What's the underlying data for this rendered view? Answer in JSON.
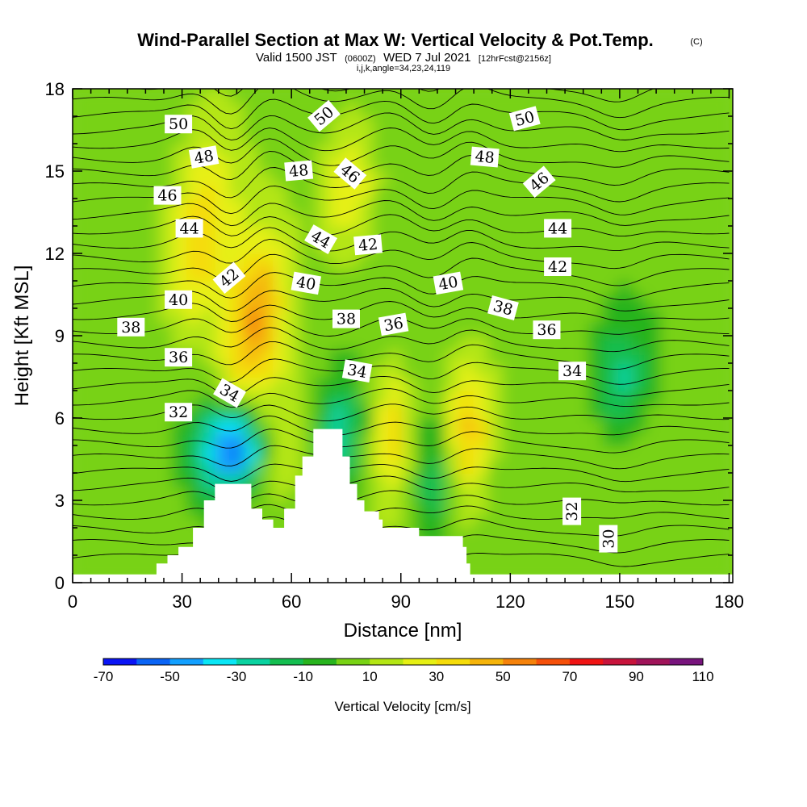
{
  "title": "Wind-Parallel Section at Max W: Vertical Velocity & Pot.Temp.",
  "title_mark": "(C)",
  "subtitle": {
    "valid": "Valid 1500 JST",
    "utc": "(0600Z)",
    "date": "WED 7 Jul 2021",
    "forecast": "[12hrFcst@2156z]"
  },
  "params": "i,j,k,angle=34,23,24,119",
  "chart_data": {
    "type": "heatmap",
    "xlabel": "Distance [nm]",
    "ylabel": "Height [Kft MSL]",
    "xlim": [
      0,
      181
    ],
    "ylim": [
      0,
      18
    ],
    "xticks": [
      0,
      30,
      60,
      90,
      120,
      150,
      180
    ],
    "yticks": [
      0,
      3,
      6,
      9,
      12,
      15,
      18
    ],
    "colorbar": {
      "title": "Vertical Velocity [cm/s]",
      "levels": [
        -70,
        -60,
        -50,
        -40,
        -30,
        -20,
        -10,
        0,
        10,
        20,
        30,
        40,
        50,
        60,
        70,
        80,
        90,
        100,
        110
      ],
      "tick_labels": [
        "-70",
        "-50",
        "-30",
        "-10",
        "10",
        "30",
        "50",
        "70",
        "90",
        "110"
      ],
      "colors": [
        "#0a14f5",
        "#0a64f5",
        "#12a0ff",
        "#0ae6f5",
        "#0ad2a0",
        "#14be50",
        "#28b41e",
        "#78d214",
        "#b4e614",
        "#e6f014",
        "#f5dc0a",
        "#f5b40a",
        "#f5820a",
        "#f5500a",
        "#f01414",
        "#c8143c",
        "#a0145a",
        "#78147d"
      ]
    },
    "wmax_cores": [
      {
        "x": 45,
        "y": 5.0,
        "w": -62
      },
      {
        "x": 35,
        "y": 12.5,
        "w": 34
      },
      {
        "x": 50,
        "y": 9.5,
        "w": 46
      },
      {
        "x": 76,
        "y": 14.5,
        "w": 28
      },
      {
        "x": 55,
        "y": 5.0,
        "w": 26
      },
      {
        "x": 88,
        "y": 5.5,
        "w": 32
      },
      {
        "x": 108,
        "y": 5.5,
        "w": 42
      },
      {
        "x": 74,
        "y": 5.5,
        "w": -32
      },
      {
        "x": 100,
        "y": 4.0,
        "w": -26
      },
      {
        "x": 150,
        "y": 7.5,
        "w": -28
      }
    ],
    "terrain": [
      [
        0,
        0.3
      ],
      [
        22,
        0.3
      ],
      [
        23,
        0.7
      ],
      [
        26,
        1.0
      ],
      [
        29,
        1.3
      ],
      [
        33,
        2.0
      ],
      [
        36,
        3.0
      ],
      [
        39,
        3.6
      ],
      [
        48,
        3.6
      ],
      [
        49,
        2.7
      ],
      [
        52,
        2.3
      ],
      [
        55,
        2.0
      ],
      [
        58,
        2.7
      ],
      [
        61,
        3.9
      ],
      [
        63,
        4.6
      ],
      [
        66,
        5.6
      ],
      [
        72,
        5.6
      ],
      [
        74,
        4.6
      ],
      [
        76,
        3.6
      ],
      [
        78,
        3.0
      ],
      [
        80,
        2.6
      ],
      [
        84,
        2.3
      ],
      [
        85,
        2.0
      ],
      [
        94,
        2.0
      ],
      [
        95,
        1.7
      ],
      [
        104,
        1.7
      ],
      [
        107,
        1.3
      ],
      [
        108,
        0.7
      ],
      [
        109,
        0.3
      ],
      [
        181,
        0.3
      ]
    ],
    "contour_labels": [
      {
        "text": "50",
        "x": 29,
        "y": 16.7,
        "rot": 0
      },
      {
        "text": "48",
        "x": 36,
        "y": 15.5,
        "rot": -10
      },
      {
        "text": "46",
        "x": 26,
        "y": 14.1,
        "rot": 0
      },
      {
        "text": "44",
        "x": 32,
        "y": 12.9,
        "rot": 0
      },
      {
        "text": "42",
        "x": 43,
        "y": 11.1,
        "rot": -40
      },
      {
        "text": "40",
        "x": 29,
        "y": 10.3,
        "rot": 0
      },
      {
        "text": "38",
        "x": 16,
        "y": 9.3,
        "rot": 0
      },
      {
        "text": "36",
        "x": 29,
        "y": 8.2,
        "rot": 0
      },
      {
        "text": "34",
        "x": 43,
        "y": 6.9,
        "rot": 30
      },
      {
        "text": "32",
        "x": 29,
        "y": 6.2,
        "rot": 0
      },
      {
        "text": "50",
        "x": 69,
        "y": 17.0,
        "rot": -40
      },
      {
        "text": "48",
        "x": 62,
        "y": 15.0,
        "rot": -5
      },
      {
        "text": "46",
        "x": 76,
        "y": 14.9,
        "rot": 40
      },
      {
        "text": "44",
        "x": 68,
        "y": 12.5,
        "rot": 30
      },
      {
        "text": "42",
        "x": 81,
        "y": 12.3,
        "rot": -5
      },
      {
        "text": "40",
        "x": 64,
        "y": 10.9,
        "rot": 10
      },
      {
        "text": "38",
        "x": 75,
        "y": 9.6,
        "rot": 0
      },
      {
        "text": "36",
        "x": 88,
        "y": 9.4,
        "rot": -10
      },
      {
        "text": "34",
        "x": 78,
        "y": 7.7,
        "rot": 10
      },
      {
        "text": "50",
        "x": 124,
        "y": 16.9,
        "rot": -15
      },
      {
        "text": "48",
        "x": 113,
        "y": 15.5,
        "rot": 5
      },
      {
        "text": "46",
        "x": 128,
        "y": 14.6,
        "rot": -40
      },
      {
        "text": "44",
        "x": 133,
        "y": 12.9,
        "rot": 0
      },
      {
        "text": "42",
        "x": 133,
        "y": 11.5,
        "rot": 0
      },
      {
        "text": "40",
        "x": 103,
        "y": 10.9,
        "rot": -10
      },
      {
        "text": "38",
        "x": 118,
        "y": 10.0,
        "rot": 15
      },
      {
        "text": "36",
        "x": 130,
        "y": 9.2,
        "rot": 0
      },
      {
        "text": "34",
        "x": 137,
        "y": 7.7,
        "rot": 0
      },
      {
        "text": "32",
        "x": 137,
        "y": 2.6,
        "rot": -90
      },
      {
        "text": "30",
        "x": 147,
        "y": 1.6,
        "rot": -90
      }
    ]
  }
}
